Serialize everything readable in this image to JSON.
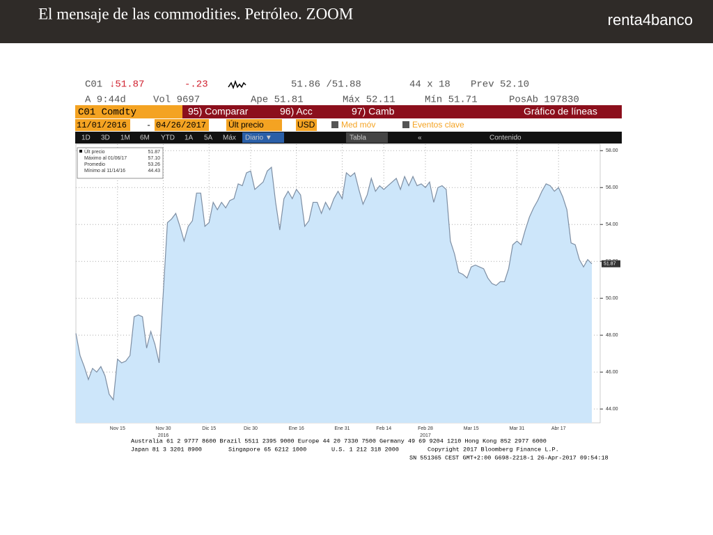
{
  "header": {
    "title": "El mensaje de las commodities. Petróleo. ZOOM",
    "logo": "renta4banco"
  },
  "terminal": {
    "row1": [
      "C01",
      "↓51.87",
      "-.23",
      "51.86 /51.88",
      "44 x 18",
      "Prev 52.10"
    ],
    "row2": [
      "A 9:44d",
      "Vol 9697",
      "Ape 51.81",
      "Máx 52.11",
      "Mín 51.71",
      "PosAb 197830"
    ],
    "menu": [
      "C01 Comdty",
      "95) Comparar",
      "96) Acc",
      "97) Camb",
      "Gráfico de líneas"
    ],
    "controls": [
      "11/01/2016",
      "-",
      "04/26/2017",
      "Últ precio",
      "USD",
      "Med móv",
      "Eventos clave"
    ],
    "periods": [
      "1D",
      "3D",
      "1M",
      "6M",
      "YTD",
      "1A",
      "5A",
      "Máx",
      "Diario ▼",
      "Tabla",
      "«",
      "Contenido"
    ]
  },
  "chart_data": {
    "type": "area",
    "series": [
      {
        "name": "Últ precio",
        "color": "#cde6fa",
        "line_color": "#7d8ea3",
        "values": [
          48.1,
          46.9,
          46.3,
          45.6,
          46.2,
          46.0,
          46.3,
          45.8,
          44.8,
          44.5,
          46.7,
          46.5,
          46.6,
          46.9,
          49.0,
          49.1,
          49.0,
          47.3,
          48.2,
          47.5,
          46.5,
          50.3,
          54.1,
          54.3,
          54.6,
          53.9,
          53.1,
          53.9,
          54.2,
          55.7,
          55.7,
          53.9,
          54.1,
          55.2,
          54.8,
          55.2,
          54.9,
          55.3,
          55.4,
          56.2,
          56.1,
          56.8,
          56.9,
          55.9,
          56.1,
          56.3,
          56.9,
          57.1,
          55.2,
          53.7,
          55.4,
          55.8,
          55.4,
          55.9,
          55.6,
          53.9,
          54.2,
          55.2,
          55.2,
          54.6,
          55.2,
          54.8,
          55.4,
          55.8,
          55.4,
          56.8,
          56.6,
          56.8,
          55.9,
          55.1,
          55.6,
          56.5,
          55.8,
          56.1,
          55.9,
          56.1,
          56.3,
          56.5,
          55.9,
          56.6,
          56.1,
          56.6,
          56.1,
          56.2,
          56.0,
          56.3,
          55.2,
          56.0,
          56.1,
          55.9,
          53.1,
          52.4,
          51.4,
          51.3,
          51.1,
          51.7,
          51.8,
          51.7,
          51.6,
          51.1,
          50.8,
          50.7,
          50.9,
          50.9,
          51.6,
          52.9,
          53.1,
          52.9,
          53.7,
          54.4,
          54.9,
          55.3,
          55.8,
          56.2,
          56.1,
          55.8,
          56.0,
          55.5,
          54.8,
          53.0,
          52.9,
          52.1,
          51.7,
          52.1,
          51.87
        ]
      }
    ],
    "categories": [
      null,
      null,
      null,
      null,
      null,
      null,
      null,
      null,
      null,
      null,
      "Nov 15",
      null,
      null,
      null,
      null,
      null,
      null,
      null,
      null,
      null,
      null,
      "Nov 30",
      null,
      null,
      null,
      null,
      null,
      null,
      null,
      null,
      null,
      null,
      "Dic 15",
      null,
      null,
      null,
      null,
      null,
      null,
      null,
      null,
      null,
      "Dic 30",
      null,
      null,
      null,
      null,
      null,
      null,
      null,
      null,
      null,
      null,
      "Ene 16",
      null,
      null,
      null,
      null,
      null,
      null,
      null,
      null,
      null,
      null,
      "Ene 31",
      null,
      null,
      null,
      null,
      null,
      null,
      null,
      null,
      null,
      "Feb 14",
      null,
      null,
      null,
      null,
      null,
      null,
      null,
      null,
      null,
      "Feb 28",
      null,
      null,
      null,
      null,
      null,
      null,
      null,
      null,
      null,
      null,
      "Mar 15",
      null,
      null,
      null,
      null,
      null,
      null,
      null,
      null,
      null,
      null,
      "Mar 31",
      null,
      null,
      null,
      null,
      null,
      null,
      null,
      null,
      null,
      "Abr 17",
      null,
      null,
      null,
      null,
      null,
      null,
      null,
      null
    ],
    "x_year_labels": [
      {
        "category": "Nov 30",
        "label": "2016"
      },
      {
        "category": "Feb 28",
        "label": "2017"
      }
    ],
    "ylim": [
      43.25,
      58.35
    ],
    "yticks": [
      {
        "value": 44,
        "label": "44.00"
      },
      {
        "value": 46,
        "label": "46.00"
      },
      {
        "value": 48,
        "label": "48.00"
      },
      {
        "value": 50,
        "label": "50.00"
      },
      {
        "value": 52,
        "label": "52.00"
      },
      {
        "value": 54,
        "label": "54.00"
      },
      {
        "value": 56,
        "label": "56.00"
      },
      {
        "value": 58,
        "label": "58.00"
      }
    ],
    "grid": true,
    "legend_stats": [
      {
        "label": "Máximo al 01/06/17",
        "value": "57.10"
      },
      {
        "label": "Promedio",
        "value": "53.26"
      },
      {
        "label": "Mínimo al 11/14/16",
        "value": "44.43"
      }
    ]
  },
  "footer": [
    "Australia 61 2 9777 8600 Brazil 5511 2395 9000 Europe 44 20 7330 7500 Germany 49 69 9204 1210 Hong Kong 852 2977 6000",
    "Japan 81 3 3201 8900",
    "Singapore 65 6212 1000",
    "U.S. 1 212 318 2000",
    "Copyright 2017 Bloomberg Finance L.P.",
    "SN 551365 CEST GMT+2:00 G698-2218-1 26-Apr-2017 09:54:18"
  ]
}
